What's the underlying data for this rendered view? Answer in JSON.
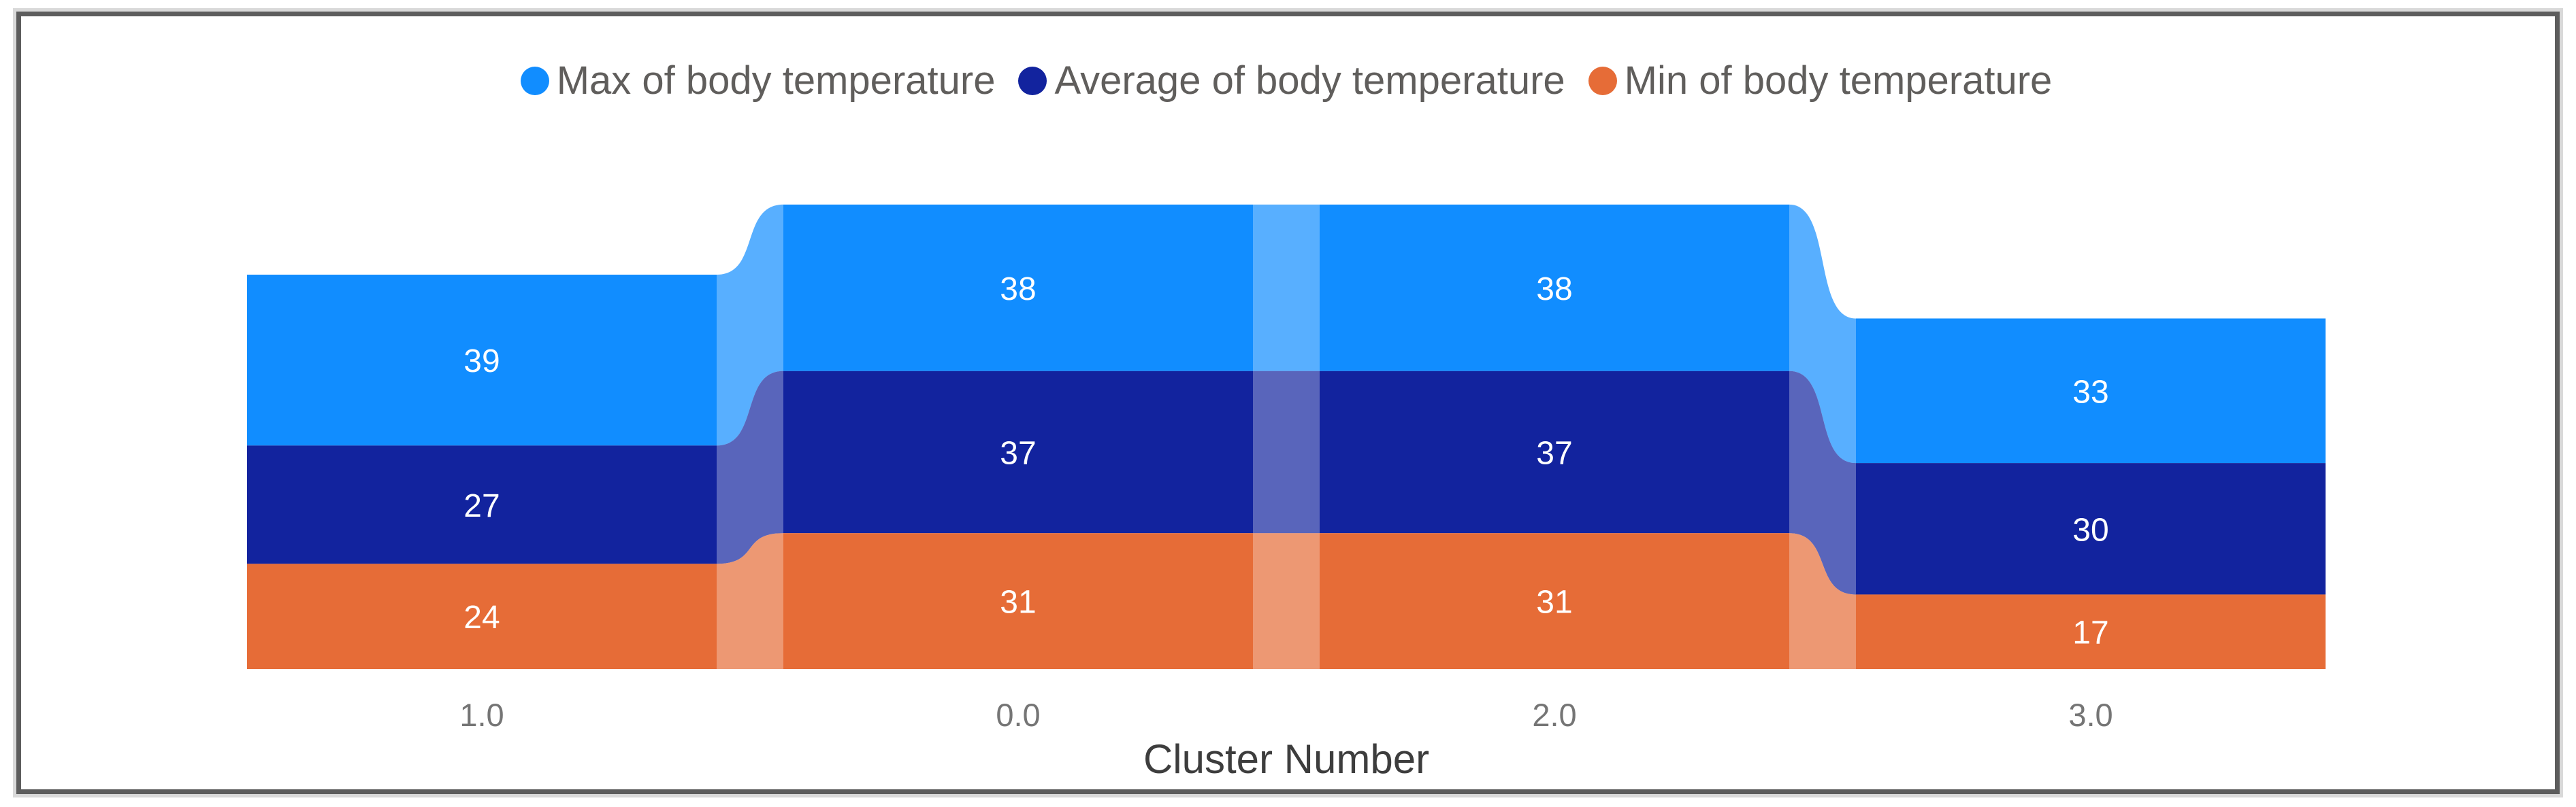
{
  "chart_data": {
    "type": "ribbon",
    "title": "",
    "categories": [
      "1.0",
      "0.0",
      "2.0",
      "3.0"
    ],
    "series": [
      {
        "name": "Max of body temperature",
        "color": "#118DFF",
        "values": [
          39,
          38,
          38,
          33
        ]
      },
      {
        "name": "Average of body temperature",
        "color": "#12239E",
        "values": [
          27,
          37,
          37,
          30
        ]
      },
      {
        "name": "Min of body temperature",
        "color": "#E66C37",
        "values": [
          24,
          31,
          31,
          17
        ]
      }
    ],
    "xlabel": "Cluster Number",
    "legend_position": "top",
    "legend_text_color": "#605E5C",
    "ribbon_opacity": 0.7,
    "data_labels_visible": true,
    "data_label_color": "#FFFFFF",
    "x_tick_color": "#757575",
    "axis_title_color": "#3d3d3d",
    "grid": false,
    "y_axis_visible": false,
    "bars_bottom_aligned": true
  },
  "frame": {
    "border_color": "#5d5d5d",
    "outer_shadow_color": "#d9d9d9",
    "background": "#ffffff"
  }
}
